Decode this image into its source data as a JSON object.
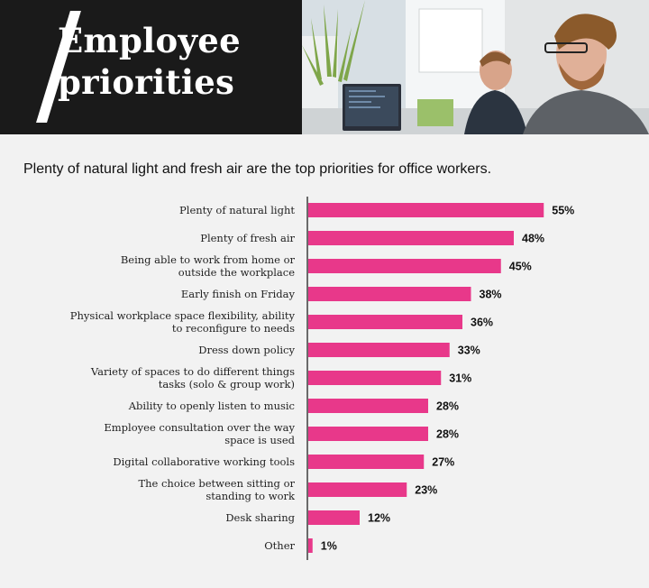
{
  "header": {
    "title_line1": "Employee",
    "title_line2": "priorities"
  },
  "subtitle": "Plenty of natural light and fresh air are the top priorities for office workers.",
  "colors": {
    "bar": "#e8388a",
    "header_bg": "#1a1a1a",
    "page_bg": "#f2f2f2"
  },
  "chart_data": {
    "type": "bar",
    "orientation": "horizontal",
    "title": "",
    "xlabel": "",
    "ylabel": "",
    "xlim": [
      0,
      100
    ],
    "unit": "%",
    "categories": [
      [
        "Plenty of natural light"
      ],
      [
        "Plenty of fresh air"
      ],
      [
        "Being able to work from home or",
        "outside the workplace"
      ],
      [
        "Early finish on Friday"
      ],
      [
        "Physical workplace  space flexibility, ability",
        "to reconfigure to needs"
      ],
      [
        "Dress down policy"
      ],
      [
        "Variety of spaces to do different things",
        "tasks (solo & group work)"
      ],
      [
        "Ability to openly listen to music"
      ],
      [
        "Employee consultation over the way",
        "space is used"
      ],
      [
        "Digital collaborative working tools"
      ],
      [
        "The choice between sitting or",
        "standing to work"
      ],
      [
        "Desk sharing"
      ],
      [
        "Other"
      ]
    ],
    "values": [
      55,
      48,
      45,
      38,
      36,
      33,
      31,
      28,
      28,
      27,
      23,
      12,
      1
    ],
    "value_labels": [
      "55%",
      "48%",
      "45%",
      "38%",
      "36%",
      "33%",
      "31%",
      "28%",
      "28%",
      "27%",
      "23%",
      "12%",
      "1%"
    ],
    "grid": false,
    "legend": "none"
  }
}
